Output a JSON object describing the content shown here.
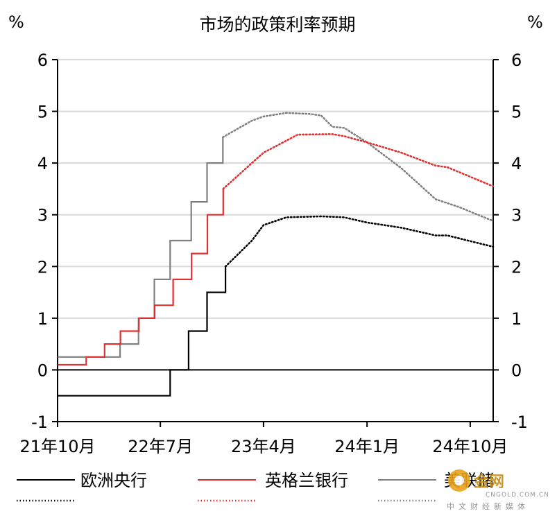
{
  "chart_data": {
    "type": "line",
    "title": "市场的政策利率预期",
    "ylabel_left": "%",
    "ylabel_right": "%",
    "ylim": [
      -1,
      6
    ],
    "yticks": [
      -1,
      0,
      1,
      2,
      3,
      4,
      5,
      6
    ],
    "xlim": [
      "2021-10-01",
      "2024-12-01"
    ],
    "xticks": [
      {
        "date": "2021-10-01",
        "label": "21年10月"
      },
      {
        "date": "2022-07-01",
        "label": "22年7月"
      },
      {
        "date": "2023-04-01",
        "label": "23年4月"
      },
      {
        "date": "2024-01-01",
        "label": "24年1月"
      },
      {
        "date": "2024-10-01",
        "label": "24年10月"
      }
    ],
    "grid": "horizontal",
    "legend_position": "bottom",
    "series": [
      {
        "name": "欧洲央行",
        "color": "#000000",
        "actual": [
          [
            "2021-10-01",
            -0.5
          ],
          [
            "2022-07-27",
            -0.5
          ],
          [
            "2022-07-27",
            0
          ],
          [
            "2022-09-14",
            0
          ],
          [
            "2022-09-14",
            0.75
          ],
          [
            "2022-11-02",
            0.75
          ],
          [
            "2022-11-02",
            1.5
          ],
          [
            "2022-12-21",
            1.5
          ],
          [
            "2022-12-21",
            2.0
          ]
        ],
        "expected": [
          [
            "2022-12-21",
            2.0
          ],
          [
            "2023-03-01",
            2.5
          ],
          [
            "2023-04-01",
            2.8
          ],
          [
            "2023-06-01",
            2.95
          ],
          [
            "2023-09-01",
            2.97
          ],
          [
            "2023-11-01",
            2.95
          ],
          [
            "2024-01-01",
            2.85
          ],
          [
            "2024-04-01",
            2.75
          ],
          [
            "2024-07-01",
            2.6
          ],
          [
            "2024-08-01",
            2.6
          ],
          [
            "2024-12-01",
            2.38
          ]
        ]
      },
      {
        "name": "英格兰银行",
        "color": "#e03030",
        "actual": [
          [
            "2021-10-01",
            0.1
          ],
          [
            "2021-12-16",
            0.1
          ],
          [
            "2021-12-16",
            0.25
          ],
          [
            "2022-02-03",
            0.25
          ],
          [
            "2022-02-03",
            0.5
          ],
          [
            "2022-03-17",
            0.5
          ],
          [
            "2022-03-17",
            0.75
          ],
          [
            "2022-05-05",
            0.75
          ],
          [
            "2022-05-05",
            1.0
          ],
          [
            "2022-06-16",
            1.0
          ],
          [
            "2022-06-16",
            1.25
          ],
          [
            "2022-08-04",
            1.25
          ],
          [
            "2022-08-04",
            1.75
          ],
          [
            "2022-09-22",
            1.75
          ],
          [
            "2022-09-22",
            2.25
          ],
          [
            "2022-11-03",
            2.25
          ],
          [
            "2022-11-03",
            3.0
          ],
          [
            "2022-12-15",
            3.0
          ],
          [
            "2022-12-15",
            3.5
          ]
        ],
        "expected": [
          [
            "2022-12-15",
            3.5
          ],
          [
            "2023-03-01",
            4.0
          ],
          [
            "2023-04-01",
            4.2
          ],
          [
            "2023-07-01",
            4.55
          ],
          [
            "2023-10-01",
            4.56
          ],
          [
            "2023-11-01",
            4.52
          ],
          [
            "2024-01-01",
            4.4
          ],
          [
            "2024-04-01",
            4.2
          ],
          [
            "2024-07-01",
            3.95
          ],
          [
            "2024-08-01",
            3.92
          ],
          [
            "2024-12-01",
            3.55
          ]
        ]
      },
      {
        "name": "美联储",
        "color": "#808080",
        "actual": [
          [
            "2021-10-01",
            0.25
          ],
          [
            "2022-03-16",
            0.25
          ],
          [
            "2022-03-16",
            0.5
          ],
          [
            "2022-05-04",
            0.5
          ],
          [
            "2022-05-04",
            1.0
          ],
          [
            "2022-06-15",
            1.0
          ],
          [
            "2022-06-15",
            1.75
          ],
          [
            "2022-07-27",
            1.75
          ],
          [
            "2022-07-27",
            2.5
          ],
          [
            "2022-09-21",
            2.5
          ],
          [
            "2022-09-21",
            3.25
          ],
          [
            "2022-11-02",
            3.25
          ],
          [
            "2022-11-02",
            4.0
          ],
          [
            "2022-12-14",
            4.0
          ],
          [
            "2022-12-14",
            4.5
          ]
        ],
        "expected": [
          [
            "2022-12-14",
            4.5
          ],
          [
            "2023-03-01",
            4.82
          ],
          [
            "2023-04-01",
            4.9
          ],
          [
            "2023-06-01",
            4.97
          ],
          [
            "2023-08-01",
            4.95
          ],
          [
            "2023-09-01",
            4.92
          ],
          [
            "2023-10-01",
            4.7
          ],
          [
            "2023-11-01",
            4.68
          ],
          [
            "2024-01-01",
            4.4
          ],
          [
            "2024-04-01",
            3.9
          ],
          [
            "2024-07-01",
            3.3
          ],
          [
            "2024-09-01",
            3.15
          ],
          [
            "2024-12-01",
            2.88
          ]
        ]
      }
    ]
  },
  "watermark": {
    "text": "金网",
    "site": "CNGOLD.COM.CN",
    "tagline": "中文财经新媒体"
  }
}
